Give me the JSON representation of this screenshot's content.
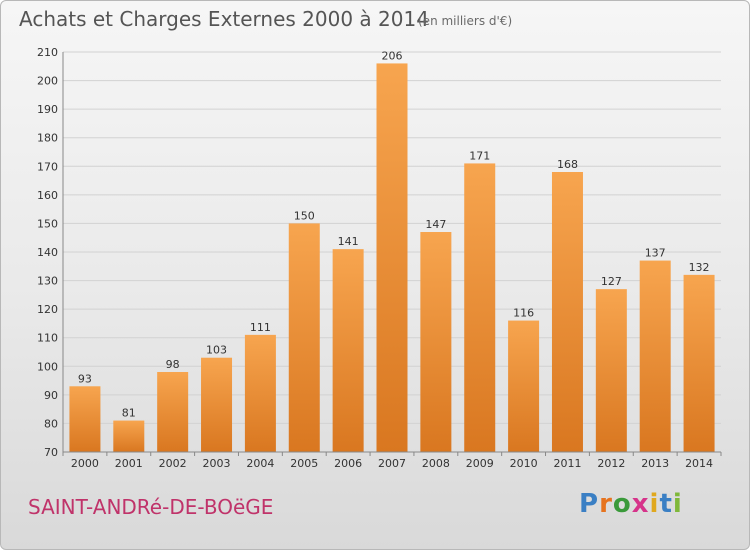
{
  "header": {
    "title": "Achats et Charges Externes 2000 à 2014",
    "subtitle": "(en milliers d'€)"
  },
  "footer": {
    "place_name": "SAINT-ANDRé-DE-BOëGE",
    "logo_text": "Proxiti",
    "logo_letter_colors": [
      "#3a7fc4",
      "#e6731e",
      "#3a9a3a",
      "#d6338a",
      "#e0a81e",
      "#3a7fc4",
      "#7fb83a"
    ]
  },
  "colors": {
    "bar_top": "#f7a54f",
    "bar_bottom": "#d97720",
    "grid": "#d2d2d2",
    "axis": "#888888",
    "text": "#333333"
  },
  "chart_data": {
    "type": "bar",
    "categories": [
      "2000",
      "2001",
      "2002",
      "2003",
      "2004",
      "2005",
      "2006",
      "2007",
      "2008",
      "2009",
      "2010",
      "2011",
      "2012",
      "2013",
      "2014"
    ],
    "values": [
      93,
      81,
      98,
      103,
      111,
      150,
      141,
      206,
      147,
      171,
      116,
      168,
      127,
      137,
      132
    ],
    "ylim": [
      70,
      210
    ],
    "yticks": [
      70,
      80,
      90,
      100,
      110,
      120,
      130,
      140,
      150,
      160,
      170,
      180,
      190,
      200,
      210
    ],
    "grid": true
  }
}
